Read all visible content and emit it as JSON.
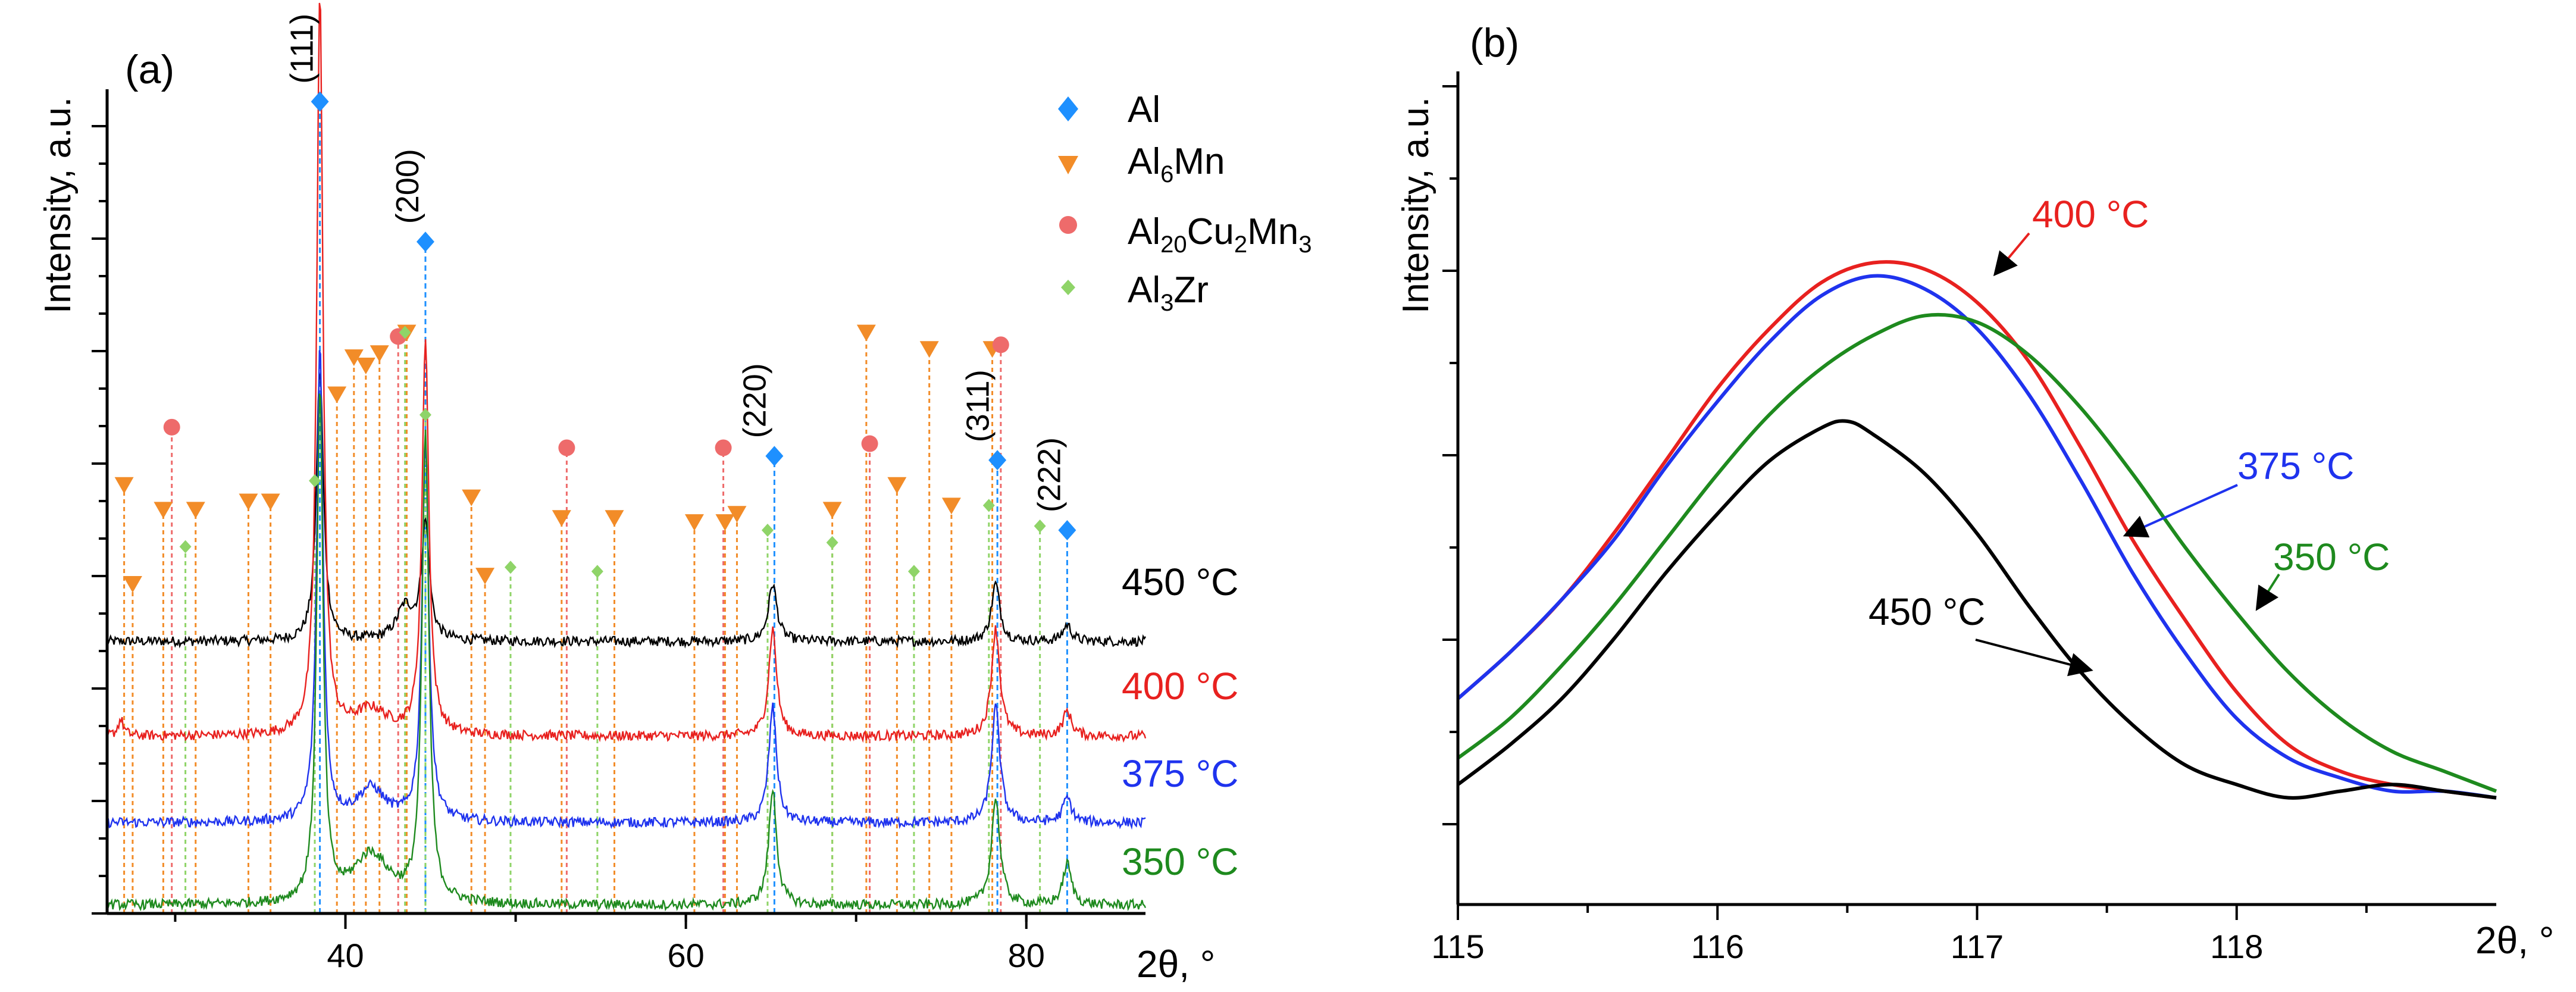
{
  "colors": {
    "al": "#1e90ff",
    "al6mn": "#f28c28",
    "al20": "#ee6b6b",
    "al3zr": "#8fd468",
    "s450": "#000000",
    "s400": "#e8211f",
    "s375": "#1f33ee",
    "s350": "#1e8a1e",
    "axis": "#000000"
  },
  "chart_data": [
    {
      "type": "line",
      "panel_label": "(a)",
      "xlabel": "2θ, °",
      "ylabel": "Intensity, a.u.",
      "xlim": [
        26,
        87
      ],
      "ylim": [
        0,
        1
      ],
      "x_ticks": [
        "40",
        "60",
        "80"
      ],
      "legend": [
        {
          "name": "Al",
          "marker": "diamond",
          "color": "#1e90ff"
        },
        {
          "name": "Al",
          "sub": "6",
          "name2": "Mn",
          "marker": "triangle-down",
          "color": "#f28c28"
        },
        {
          "name": "Al",
          "sub": "20",
          "name2": "Cu",
          "sub2": "2",
          "name3": "Mn",
          "sub3": "3",
          "marker": "circle",
          "color": "#ee6b6b"
        },
        {
          "name": "Al",
          "sub": "3",
          "name2": "Zr",
          "marker": "diamond-small",
          "color": "#8fd468"
        }
      ],
      "series": [
        {
          "name": "450 °C",
          "color": "#000000",
          "baseline": 0.33,
          "peaks": [
            [
              38.5,
              0.33,
              0.25
            ],
            [
              44.7,
              0.14,
              0.28
            ],
            [
              43.5,
              0.04,
              0.6
            ],
            [
              65.1,
              0.07,
              0.3
            ],
            [
              78.2,
              0.07,
              0.3
            ],
            [
              82.4,
              0.02,
              0.3
            ]
          ]
        },
        {
          "name": "400 °C",
          "color": "#e8211f",
          "baseline": 0.215,
          "peaks": [
            [
              38.5,
              0.9,
              0.22
            ],
            [
              44.7,
              0.48,
              0.24
            ],
            [
              41.5,
              0.03,
              1.2
            ],
            [
              65.1,
              0.13,
              0.28
            ],
            [
              78.2,
              0.13,
              0.3
            ],
            [
              82.4,
              0.03,
              0.3
            ],
            [
              26.8,
              0.02,
              0.2
            ]
          ]
        },
        {
          "name": "375 °C",
          "color": "#1f33ee",
          "baseline": 0.11,
          "peaks": [
            [
              38.5,
              0.58,
              0.22
            ],
            [
              44.7,
              0.46,
              0.24
            ],
            [
              41.5,
              0.04,
              1.0
            ],
            [
              65.1,
              0.14,
              0.28
            ],
            [
              78.2,
              0.14,
              0.3
            ],
            [
              82.4,
              0.03,
              0.3
            ]
          ]
        },
        {
          "name": "350 °C",
          "color": "#1e8a1e",
          "baseline": 0.01,
          "peaks": [
            [
              38.5,
              0.62,
              0.22
            ],
            [
              44.7,
              0.57,
              0.24
            ],
            [
              41.5,
              0.06,
              1.3
            ],
            [
              65.1,
              0.14,
              0.28
            ],
            [
              78.2,
              0.13,
              0.3
            ],
            [
              82.4,
              0.05,
              0.3
            ]
          ]
        }
      ],
      "series_labels": [
        "450 °C",
        "400 °C",
        "375 °C",
        "350 °C"
      ],
      "peak_labels": [
        {
          "text": "(111)",
          "x": 38.5
        },
        {
          "text": "(200)",
          "x": 44.7
        },
        {
          "text": "(220)",
          "x": 65.1
        },
        {
          "text": "(311)",
          "x": 78.2
        },
        {
          "text": "(222)",
          "x": 82.4
        }
      ],
      "reference_lines": {
        "Al": [
          [
            38.5,
            0.985
          ],
          [
            44.7,
            0.815
          ],
          [
            65.2,
            0.555
          ],
          [
            78.3,
            0.55
          ],
          [
            82.4,
            0.465
          ]
        ],
        "Al6Mn": [
          [
            27.0,
            0.52
          ],
          [
            27.5,
            0.4
          ],
          [
            29.3,
            0.49
          ],
          [
            31.2,
            0.49
          ],
          [
            34.3,
            0.5
          ],
          [
            35.6,
            0.5
          ],
          [
            39.5,
            0.63
          ],
          [
            40.5,
            0.675
          ],
          [
            41.2,
            0.665
          ],
          [
            42.0,
            0.68
          ],
          [
            43.6,
            0.705
          ],
          [
            47.4,
            0.505
          ],
          [
            48.2,
            0.41
          ],
          [
            52.7,
            0.48
          ],
          [
            55.8,
            0.48
          ],
          [
            60.5,
            0.475
          ],
          [
            62.3,
            0.475
          ],
          [
            63.0,
            0.485
          ],
          [
            68.6,
            0.49
          ],
          [
            70.6,
            0.705
          ],
          [
            72.4,
            0.52
          ],
          [
            74.3,
            0.685
          ],
          [
            75.6,
            0.495
          ],
          [
            78.0,
            0.685
          ]
        ],
        "Al20Cu2Mn3": [
          [
            29.8,
            0.59
          ],
          [
            43.1,
            0.7
          ],
          [
            53.0,
            0.565
          ],
          [
            62.2,
            0.565
          ],
          [
            70.8,
            0.57
          ],
          [
            78.5,
            0.69
          ]
        ],
        "Al3Zr": [
          [
            30.6,
            0.445
          ],
          [
            38.2,
            0.525
          ],
          [
            43.5,
            0.705
          ],
          [
            44.7,
            0.605
          ],
          [
            49.7,
            0.42
          ],
          [
            54.8,
            0.415
          ],
          [
            64.8,
            0.465
          ],
          [
            68.6,
            0.45
          ],
          [
            73.4,
            0.415
          ],
          [
            77.8,
            0.495
          ],
          [
            80.8,
            0.47
          ]
        ]
      }
    },
    {
      "type": "line",
      "panel_label": "(b)",
      "xlabel": "2θ, °",
      "ylabel": "Intensity, a.u.",
      "xlim": [
        115,
        119
      ],
      "ylim": [
        0,
        1
      ],
      "x_ticks": [
        "115",
        "116",
        "117",
        "118"
      ],
      "series": [
        {
          "name": "400 °C",
          "color": "#e8211f",
          "x": [
            115.0,
            115.2,
            115.4,
            115.6,
            115.8,
            116.0,
            116.2,
            116.4,
            116.6,
            116.8,
            117.0,
            117.2,
            117.4,
            117.6,
            117.8,
            118.0,
            118.2,
            118.4,
            118.6,
            118.8,
            119.0
          ],
          "y": [
            0.19,
            0.26,
            0.34,
            0.44,
            0.55,
            0.66,
            0.75,
            0.82,
            0.85,
            0.84,
            0.79,
            0.7,
            0.57,
            0.43,
            0.31,
            0.2,
            0.12,
            0.08,
            0.06,
            0.05,
            0.04
          ]
        },
        {
          "name": "375 °C",
          "color": "#1f33ee",
          "x": [
            115.0,
            115.2,
            115.4,
            115.6,
            115.8,
            116.0,
            116.2,
            116.4,
            116.6,
            116.8,
            117.0,
            117.2,
            117.4,
            117.6,
            117.8,
            118.0,
            118.2,
            118.4,
            118.6,
            118.8,
            119.0
          ],
          "y": [
            0.19,
            0.26,
            0.34,
            0.43,
            0.54,
            0.64,
            0.73,
            0.8,
            0.83,
            0.81,
            0.75,
            0.65,
            0.52,
            0.38,
            0.26,
            0.16,
            0.1,
            0.07,
            0.05,
            0.05,
            0.04
          ]
        },
        {
          "name": "350 °C",
          "color": "#1e8a1e",
          "x": [
            115.0,
            115.2,
            115.4,
            115.6,
            115.8,
            116.0,
            116.2,
            116.4,
            116.6,
            116.8,
            117.0,
            117.2,
            117.4,
            117.6,
            117.8,
            118.0,
            118.2,
            118.4,
            118.6,
            118.8,
            119.0
          ],
          "y": [
            0.1,
            0.16,
            0.24,
            0.33,
            0.43,
            0.53,
            0.62,
            0.69,
            0.74,
            0.77,
            0.76,
            0.71,
            0.63,
            0.53,
            0.42,
            0.32,
            0.23,
            0.16,
            0.11,
            0.08,
            0.05
          ]
        },
        {
          "name": "450 °C",
          "color": "#000000",
          "x": [
            115.0,
            115.2,
            115.4,
            115.6,
            115.8,
            116.0,
            116.2,
            116.4,
            116.5,
            116.6,
            116.8,
            117.0,
            117.2,
            117.4,
            117.6,
            117.8,
            118.0,
            118.2,
            118.4,
            118.6,
            118.8,
            119.0
          ],
          "y": [
            0.06,
            0.12,
            0.19,
            0.28,
            0.38,
            0.47,
            0.55,
            0.6,
            0.61,
            0.59,
            0.53,
            0.44,
            0.33,
            0.23,
            0.15,
            0.09,
            0.06,
            0.04,
            0.05,
            0.06,
            0.05,
            0.04
          ]
        }
      ],
      "annotations": [
        {
          "text": "400 °C",
          "series": "400 °C"
        },
        {
          "text": "375 °C",
          "series": "375 °C"
        },
        {
          "text": "350 °C",
          "series": "350 °C"
        },
        {
          "text": "450 °C",
          "series": "450 °C"
        }
      ]
    }
  ]
}
